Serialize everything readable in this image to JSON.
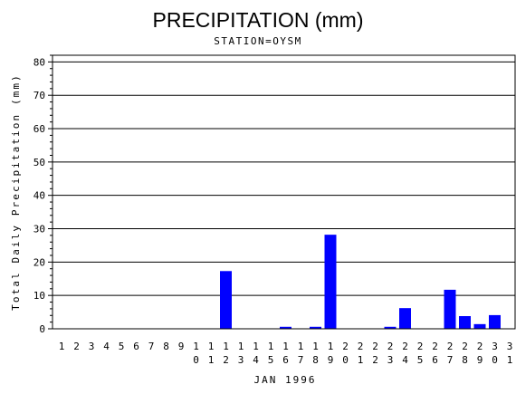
{
  "chart_data": {
    "type": "bar",
    "title": "PRECIPITATION (mm)",
    "subtitle": "STATION=OYSM",
    "xlabel": "JAN 1996",
    "ylabel": "Total Daily Precipitation (mm)",
    "ylim": [
      0,
      82
    ],
    "yticks": [
      0,
      10,
      20,
      30,
      40,
      50,
      60,
      70,
      80
    ],
    "grid": true,
    "bar_color": "#0000ff",
    "categories": [
      "1",
      "2",
      "3",
      "4",
      "5",
      "6",
      "7",
      "8",
      "9",
      "10",
      "11",
      "12",
      "13",
      "14",
      "15",
      "16",
      "17",
      "18",
      "19",
      "20",
      "21",
      "22",
      "23",
      "24",
      "25",
      "26",
      "27",
      "28",
      "29",
      "30",
      "31"
    ],
    "values": [
      0,
      0,
      0,
      0,
      0,
      0,
      0,
      0,
      0,
      0,
      0,
      17.3,
      0,
      0,
      0,
      0.6,
      0,
      0.6,
      28.2,
      0,
      0,
      0,
      0.6,
      6.2,
      0,
      0,
      11.7,
      3.8,
      1.4,
      4.1,
      0
    ]
  }
}
